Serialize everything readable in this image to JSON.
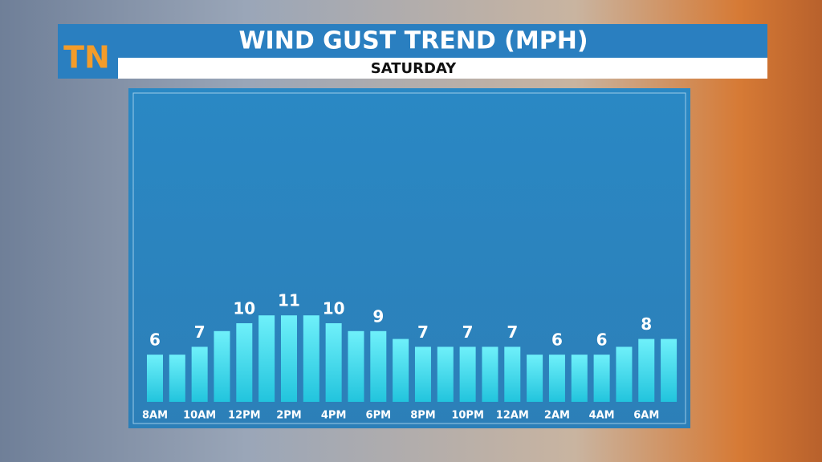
{
  "logo": "TN",
  "chart_data": {
    "type": "bar",
    "title": "WIND GUST TREND (MPH)",
    "subtitle": "SATURDAY",
    "categories": [
      "8AM",
      null,
      "10AM",
      null,
      "12PM",
      null,
      "2PM",
      null,
      "4PM",
      null,
      "6PM",
      null,
      "8PM",
      null,
      "10PM",
      null,
      "12AM",
      null,
      "2AM",
      null,
      "4AM",
      null,
      "6AM",
      null
    ],
    "values": [
      6,
      6,
      7,
      9,
      10,
      11,
      11,
      11,
      10,
      9,
      9,
      8,
      7,
      7,
      7,
      7,
      7,
      6,
      6,
      6,
      6,
      7,
      8,
      8
    ],
    "color": "#49dcef"
  }
}
